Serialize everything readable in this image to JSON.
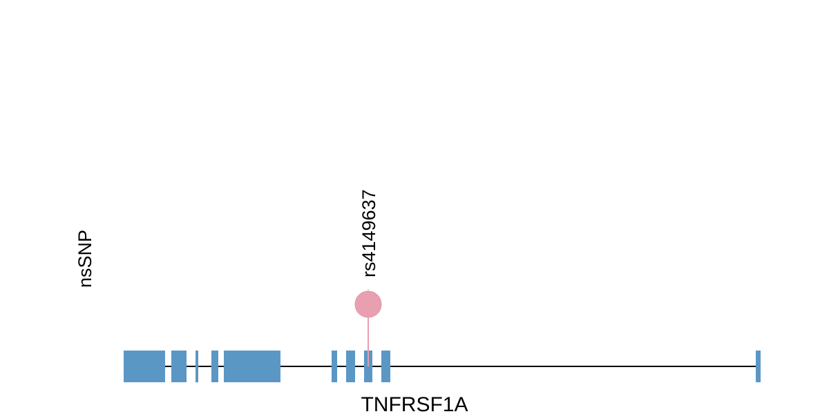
{
  "chart_data": {
    "type": "lollipop",
    "track_label": "nsSNP",
    "gene": {
      "name": "TNFRSF1A",
      "exon_count": 10,
      "color": "#5b97c4"
    },
    "variants": [
      {
        "label": "rs4149637",
        "exon": 8,
        "color": "#e8a0b0"
      }
    ],
    "backbone_color": "#000000"
  }
}
